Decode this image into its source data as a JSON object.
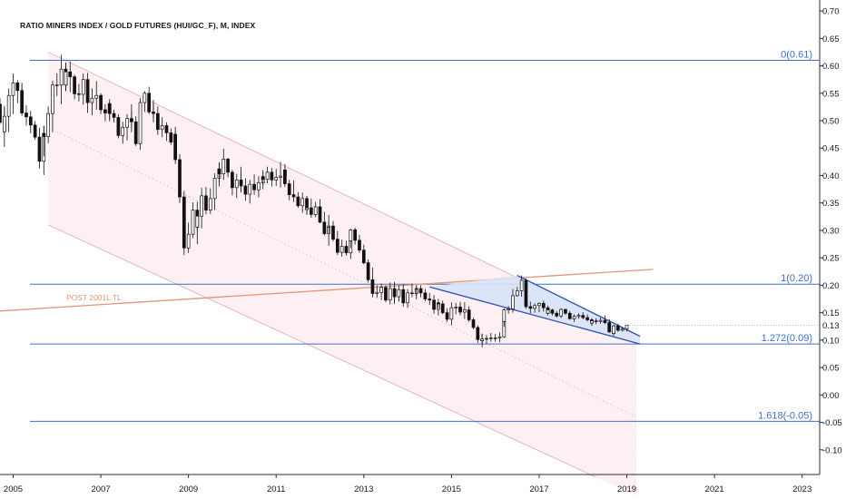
{
  "chart_data": {
    "type": "candlestick",
    "title": "RATIO MINERS INDEX / GOLD FUTURES (HUI/GC_F), M, INDEX",
    "x_ticks": [
      "2005",
      "2007",
      "2009",
      "2011",
      "2013",
      "2015",
      "2017",
      "2019",
      "2021",
      "2023"
    ],
    "y_ticks": [
      "0.70",
      "0.65",
      "0.60",
      "0.55",
      "0.50",
      "0.45",
      "0.40",
      "0.35",
      "0.30",
      "0.25",
      "0.20",
      "0.15",
      "0.10",
      "0.05",
      "0.00",
      "-0.05",
      "-0.10"
    ],
    "ylim": [
      -0.145,
      0.72
    ],
    "xlim": [
      2004.7,
      2023.4
    ],
    "last_value_label": "0.13",
    "last_value": 0.127,
    "colors": {
      "fib": "#3f6fc4",
      "trendline": "#e0967a",
      "channel": "#e8a3ad",
      "channel_fill": "#fdf0f2",
      "wedge": "#2d4fb0",
      "wedge_fill": "#d8e3f7",
      "candle": "#111111"
    },
    "fib_levels": [
      {
        "label": "0(0.61)",
        "value": 0.61
      },
      {
        "label": "1(0.20)",
        "value": 0.202
      },
      {
        "label": "1.272(0.09)",
        "value": 0.093
      },
      {
        "label": "1.618(-0.05)",
        "value": -0.048
      }
    ],
    "trendline": {
      "label": "POST 2001L TL",
      "from": [
        2004.7,
        0.153
      ],
      "to": [
        2019.6,
        0.229
      ]
    },
    "channel": {
      "upper": [
        [
          2005.8,
          0.625
        ],
        [
          2016.6,
          0.21
        ]
      ],
      "middle": [
        [
          2006.0,
          0.48
        ],
        [
          2019.2,
          -0.04
        ]
      ],
      "lower": [
        [
          2005.8,
          0.31
        ],
        [
          2018.3,
          -0.15
        ]
      ],
      "shade_end": 2019.2
    },
    "wedge": {
      "upper": [
        [
          2016.5,
          0.218
        ],
        [
          2019.3,
          0.107
        ]
      ],
      "lower": [
        [
          2014.5,
          0.197
        ],
        [
          2019.3,
          0.093
        ]
      ]
    },
    "candles": [
      [
        2004.7,
        0.53,
        0.541,
        0.494,
        0.497
      ],
      [
        2004.8,
        0.497,
        0.523,
        0.477,
        0.48
      ],
      [
        2004.8,
        0.48,
        0.527,
        0.452,
        0.508
      ],
      [
        2004.9,
        0.508,
        0.559,
        0.479,
        0.546
      ],
      [
        2005.0,
        0.546,
        0.586,
        0.512,
        0.569
      ],
      [
        2005.1,
        0.569,
        0.574,
        0.532,
        0.555
      ],
      [
        2005.2,
        0.555,
        0.565,
        0.528,
        0.548
      ],
      [
        2005.2,
        0.548,
        0.569,
        0.509,
        0.514
      ],
      [
        2005.3,
        0.514,
        0.528,
        0.491,
        0.507
      ],
      [
        2005.4,
        0.507,
        0.518,
        0.477,
        0.492
      ],
      [
        2005.5,
        0.492,
        0.499,
        0.465,
        0.47
      ],
      [
        2005.6,
        0.47,
        0.487,
        0.413,
        0.426
      ],
      [
        2005.7,
        0.426,
        0.49,
        0.401,
        0.477
      ],
      [
        2005.7,
        0.477,
        0.491,
        0.435,
        0.471
      ],
      [
        2005.8,
        0.471,
        0.526,
        0.459,
        0.513
      ],
      [
        2005.9,
        0.513,
        0.573,
        0.479,
        0.565
      ],
      [
        2006.0,
        0.565,
        0.586,
        0.545,
        0.565
      ],
      [
        2006.1,
        0.565,
        0.62,
        0.53,
        0.594
      ],
      [
        2006.2,
        0.594,
        0.606,
        0.554,
        0.565
      ],
      [
        2006.2,
        0.565,
        0.605,
        0.554,
        0.589
      ],
      [
        2006.3,
        0.589,
        0.608,
        0.552,
        0.58
      ],
      [
        2006.4,
        0.58,
        0.584,
        0.539,
        0.549
      ],
      [
        2006.5,
        0.549,
        0.567,
        0.535,
        0.548
      ],
      [
        2006.6,
        0.548,
        0.586,
        0.529,
        0.575
      ],
      [
        2006.7,
        0.575,
        0.587,
        0.536,
        0.54
      ],
      [
        2006.7,
        0.54,
        0.553,
        0.514,
        0.533
      ],
      [
        2006.8,
        0.533,
        0.559,
        0.51,
        0.541
      ],
      [
        2006.9,
        0.541,
        0.572,
        0.52,
        0.546
      ],
      [
        2007.0,
        0.546,
        0.55,
        0.512,
        0.52
      ],
      [
        2007.1,
        0.52,
        0.53,
        0.499,
        0.514
      ],
      [
        2007.2,
        0.514,
        0.539,
        0.502,
        0.531
      ],
      [
        2007.2,
        0.531,
        0.534,
        0.499,
        0.513
      ],
      [
        2007.3,
        0.513,
        0.52,
        0.497,
        0.506
      ],
      [
        2007.4,
        0.506,
        0.512,
        0.468,
        0.473
      ],
      [
        2007.5,
        0.473,
        0.498,
        0.458,
        0.488
      ],
      [
        2007.6,
        0.488,
        0.512,
        0.464,
        0.504
      ],
      [
        2007.7,
        0.504,
        0.53,
        0.487,
        0.5
      ],
      [
        2007.7,
        0.5,
        0.518,
        0.479,
        0.498
      ],
      [
        2007.8,
        0.498,
        0.508,
        0.454,
        0.458
      ],
      [
        2007.9,
        0.458,
        0.541,
        0.447,
        0.533
      ],
      [
        2008.0,
        0.533,
        0.554,
        0.516,
        0.55
      ],
      [
        2008.1,
        0.55,
        0.562,
        0.512,
        0.516
      ],
      [
        2008.2,
        0.516,
        0.532,
        0.505,
        0.515
      ],
      [
        2008.2,
        0.515,
        0.538,
        0.497,
        0.513
      ],
      [
        2008.3,
        0.513,
        0.526,
        0.474,
        0.484
      ],
      [
        2008.4,
        0.484,
        0.506,
        0.47,
        0.491
      ],
      [
        2008.5,
        0.491,
        0.497,
        0.463,
        0.478
      ],
      [
        2008.6,
        0.478,
        0.486,
        0.456,
        0.461
      ],
      [
        2008.7,
        0.461,
        0.481,
        0.446,
        0.475
      ],
      [
        2008.7,
        0.475,
        0.489,
        0.421,
        0.429
      ],
      [
        2008.8,
        0.429,
        0.439,
        0.35,
        0.361
      ],
      [
        2008.9,
        0.361,
        0.372,
        0.255,
        0.268
      ],
      [
        2009.0,
        0.268,
        0.314,
        0.259,
        0.293
      ],
      [
        2009.1,
        0.293,
        0.351,
        0.286,
        0.337
      ],
      [
        2009.2,
        0.337,
        0.352,
        0.299,
        0.306
      ],
      [
        2009.2,
        0.306,
        0.338,
        0.275,
        0.326
      ],
      [
        2009.3,
        0.326,
        0.378,
        0.304,
        0.363
      ],
      [
        2009.4,
        0.363,
        0.379,
        0.329,
        0.337
      ],
      [
        2009.5,
        0.337,
        0.377,
        0.33,
        0.358
      ],
      [
        2009.6,
        0.358,
        0.404,
        0.337,
        0.395
      ],
      [
        2009.7,
        0.395,
        0.423,
        0.38,
        0.412
      ],
      [
        2009.7,
        0.412,
        0.424,
        0.387,
        0.403
      ],
      [
        2009.8,
        0.403,
        0.449,
        0.392,
        0.43
      ],
      [
        2009.9,
        0.43,
        0.432,
        0.397,
        0.406
      ],
      [
        2010.0,
        0.406,
        0.41,
        0.364,
        0.378
      ],
      [
        2010.1,
        0.378,
        0.403,
        0.359,
        0.392
      ],
      [
        2010.2,
        0.392,
        0.416,
        0.372,
        0.387
      ],
      [
        2010.2,
        0.387,
        0.405,
        0.369,
        0.381
      ],
      [
        2010.3,
        0.381,
        0.395,
        0.354,
        0.366
      ],
      [
        2010.4,
        0.366,
        0.392,
        0.349,
        0.384
      ],
      [
        2010.5,
        0.384,
        0.402,
        0.365,
        0.374
      ],
      [
        2010.6,
        0.374,
        0.399,
        0.36,
        0.387
      ],
      [
        2010.7,
        0.387,
        0.405,
        0.382,
        0.398
      ],
      [
        2010.7,
        0.398,
        0.41,
        0.375,
        0.393
      ],
      [
        2010.8,
        0.393,
        0.416,
        0.386,
        0.406
      ],
      [
        2010.9,
        0.406,
        0.414,
        0.38,
        0.392
      ],
      [
        2011.0,
        0.392,
        0.412,
        0.381,
        0.397
      ],
      [
        2011.1,
        0.397,
        0.425,
        0.378,
        0.399
      ],
      [
        2011.2,
        0.399,
        0.421,
        0.393,
        0.41
      ],
      [
        2011.2,
        0.41,
        0.416,
        0.379,
        0.385
      ],
      [
        2011.3,
        0.385,
        0.392,
        0.355,
        0.365
      ],
      [
        2011.4,
        0.365,
        0.391,
        0.352,
        0.361
      ],
      [
        2011.5,
        0.361,
        0.37,
        0.341,
        0.345
      ],
      [
        2011.6,
        0.345,
        0.369,
        0.332,
        0.358
      ],
      [
        2011.7,
        0.358,
        0.362,
        0.328,
        0.338
      ],
      [
        2011.7,
        0.338,
        0.363,
        0.33,
        0.341
      ],
      [
        2011.8,
        0.341,
        0.358,
        0.323,
        0.329
      ],
      [
        2011.9,
        0.329,
        0.352,
        0.324,
        0.343
      ],
      [
        2012.0,
        0.343,
        0.357,
        0.313,
        0.315
      ],
      [
        2012.1,
        0.315,
        0.334,
        0.291,
        0.294
      ],
      [
        2012.2,
        0.294,
        0.317,
        0.272,
        0.306
      ],
      [
        2012.2,
        0.306,
        0.328,
        0.295,
        0.308
      ],
      [
        2012.3,
        0.308,
        0.317,
        0.28,
        0.284
      ],
      [
        2012.4,
        0.284,
        0.299,
        0.255,
        0.26
      ],
      [
        2012.5,
        0.26,
        0.283,
        0.252,
        0.271
      ],
      [
        2012.6,
        0.271,
        0.281,
        0.254,
        0.259
      ],
      [
        2012.7,
        0.259,
        0.286,
        0.248,
        0.281
      ],
      [
        2012.7,
        0.281,
        0.303,
        0.268,
        0.301
      ],
      [
        2012.8,
        0.301,
        0.305,
        0.274,
        0.282
      ],
      [
        2012.9,
        0.282,
        0.292,
        0.259,
        0.264
      ],
      [
        2013.0,
        0.264,
        0.274,
        0.238,
        0.241
      ],
      [
        2013.1,
        0.241,
        0.247,
        0.205,
        0.21
      ],
      [
        2013.2,
        0.21,
        0.232,
        0.199,
        0.205
      ],
      [
        2013.2,
        0.205,
        0.209,
        0.178,
        0.185
      ],
      [
        2013.3,
        0.185,
        0.2,
        0.177,
        0.187
      ],
      [
        2013.4,
        0.187,
        0.203,
        0.173,
        0.196
      ],
      [
        2013.5,
        0.196,
        0.2,
        0.169,
        0.173
      ],
      [
        2013.6,
        0.173,
        0.205,
        0.165,
        0.194
      ],
      [
        2013.7,
        0.194,
        0.206,
        0.169,
        0.184
      ],
      [
        2013.7,
        0.184,
        0.188,
        0.166,
        0.179
      ],
      [
        2013.8,
        0.179,
        0.2,
        0.17,
        0.192
      ],
      [
        2013.9,
        0.192,
        0.202,
        0.161,
        0.168
      ],
      [
        2014.0,
        0.168,
        0.193,
        0.159,
        0.186
      ],
      [
        2014.1,
        0.186,
        0.203,
        0.178,
        0.185
      ],
      [
        2014.2,
        0.185,
        0.2,
        0.18,
        0.193
      ],
      [
        2014.2,
        0.193,
        0.199,
        0.174,
        0.194
      ],
      [
        2014.3,
        0.194,
        0.2,
        0.178,
        0.186
      ],
      [
        2014.4,
        0.186,
        0.193,
        0.171,
        0.175
      ],
      [
        2014.5,
        0.175,
        0.186,
        0.164,
        0.173
      ],
      [
        2014.6,
        0.173,
        0.182,
        0.148,
        0.156
      ],
      [
        2014.7,
        0.156,
        0.17,
        0.145,
        0.168
      ],
      [
        2014.7,
        0.168,
        0.175,
        0.158,
        0.166
      ],
      [
        2014.8,
        0.166,
        0.172,
        0.147,
        0.15
      ],
      [
        2014.9,
        0.15,
        0.158,
        0.133,
        0.138
      ],
      [
        2015.0,
        0.138,
        0.169,
        0.127,
        0.159
      ],
      [
        2015.1,
        0.159,
        0.168,
        0.147,
        0.16
      ],
      [
        2015.2,
        0.16,
        0.17,
        0.149,
        0.16
      ],
      [
        2015.2,
        0.16,
        0.166,
        0.145,
        0.151
      ],
      [
        2015.3,
        0.151,
        0.169,
        0.139,
        0.155
      ],
      [
        2015.4,
        0.155,
        0.162,
        0.133,
        0.137
      ],
      [
        2015.5,
        0.137,
        0.141,
        0.12,
        0.123
      ],
      [
        2015.6,
        0.123,
        0.127,
        0.095,
        0.101
      ],
      [
        2015.7,
        0.101,
        0.111,
        0.093,
        0.099
      ],
      [
        2015.7,
        0.099,
        0.112,
        0.087,
        0.102
      ],
      [
        2015.8,
        0.102,
        0.109,
        0.093,
        0.103
      ],
      [
        2015.9,
        0.103,
        0.113,
        0.097,
        0.104
      ],
      [
        2016.0,
        0.104,
        0.111,
        0.097,
        0.104
      ],
      [
        2016.1,
        0.104,
        0.114,
        0.096,
        0.106
      ],
      [
        2016.2,
        0.106,
        0.141,
        0.104,
        0.134
      ],
      [
        2016.2,
        0.134,
        0.158,
        0.124,
        0.155
      ],
      [
        2016.3,
        0.155,
        0.162,
        0.148,
        0.157
      ],
      [
        2016.4,
        0.157,
        0.193,
        0.15,
        0.181
      ],
      [
        2016.5,
        0.181,
        0.197,
        0.179,
        0.19
      ],
      [
        2016.6,
        0.19,
        0.218,
        0.179,
        0.209
      ],
      [
        2016.7,
        0.209,
        0.212,
        0.162,
        0.169
      ],
      [
        2016.7,
        0.169,
        0.175,
        0.157,
        0.161
      ],
      [
        2016.8,
        0.161,
        0.17,
        0.149,
        0.158
      ],
      [
        2016.9,
        0.158,
        0.167,
        0.15,
        0.163
      ],
      [
        2017.0,
        0.163,
        0.169,
        0.151,
        0.167
      ],
      [
        2017.1,
        0.167,
        0.172,
        0.152,
        0.159
      ],
      [
        2017.2,
        0.159,
        0.163,
        0.148,
        0.149
      ],
      [
        2017.2,
        0.149,
        0.159,
        0.145,
        0.155
      ],
      [
        2017.3,
        0.155,
        0.157,
        0.145,
        0.149
      ],
      [
        2017.4,
        0.149,
        0.153,
        0.141,
        0.144
      ],
      [
        2017.5,
        0.144,
        0.158,
        0.14,
        0.156
      ],
      [
        2017.6,
        0.156,
        0.157,
        0.146,
        0.149
      ],
      [
        2017.7,
        0.149,
        0.153,
        0.145,
        0.147
      ],
      [
        2017.7,
        0.147,
        0.15,
        0.137,
        0.139
      ],
      [
        2017.8,
        0.139,
        0.147,
        0.133,
        0.143
      ],
      [
        2017.9,
        0.143,
        0.149,
        0.139,
        0.145
      ],
      [
        2018.0,
        0.145,
        0.151,
        0.138,
        0.141
      ],
      [
        2018.1,
        0.141,
        0.147,
        0.134,
        0.137
      ],
      [
        2018.2,
        0.137,
        0.14,
        0.127,
        0.131
      ],
      [
        2018.2,
        0.131,
        0.138,
        0.126,
        0.135
      ],
      [
        2018.3,
        0.135,
        0.14,
        0.129,
        0.134
      ],
      [
        2018.4,
        0.134,
        0.141,
        0.13,
        0.136
      ],
      [
        2018.5,
        0.136,
        0.145,
        0.129,
        0.132
      ],
      [
        2018.6,
        0.132,
        0.138,
        0.113,
        0.115
      ],
      [
        2018.7,
        0.115,
        0.119,
        0.108,
        0.112
      ],
      [
        2018.7,
        0.112,
        0.128,
        0.109,
        0.126
      ],
      [
        2018.8,
        0.126,
        0.13,
        0.115,
        0.118
      ],
      [
        2018.9,
        0.118,
        0.124,
        0.116,
        0.12
      ],
      [
        2019.0,
        0.12,
        0.127,
        0.116,
        0.127
      ]
    ]
  }
}
